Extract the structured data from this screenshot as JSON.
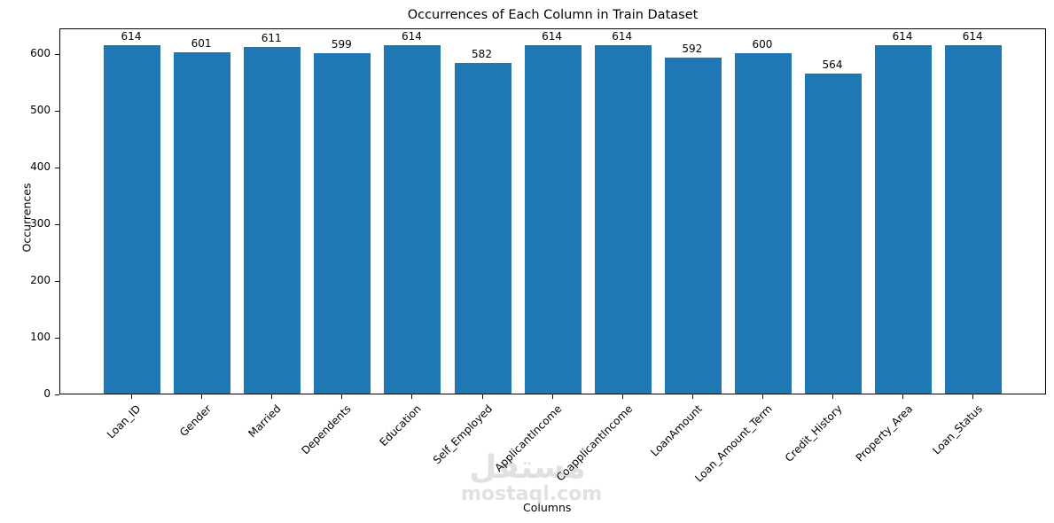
{
  "chart_data": {
    "type": "bar",
    "title": "Occurrences of Each Column in Train Dataset",
    "xlabel": "Columns",
    "ylabel": "Occurrences",
    "categories": [
      "Loan_ID",
      "Gender",
      "Married",
      "Dependents",
      "Education",
      "Self_Employed",
      "ApplicantIncome",
      "CoapplicantIncome",
      "LoanAmount",
      "Loan_Amount_Term",
      "Credit_History",
      "Property_Area",
      "Loan_Status"
    ],
    "values": [
      614,
      601,
      611,
      599,
      614,
      582,
      614,
      614,
      592,
      600,
      564,
      614,
      614
    ],
    "ylim": [
      0,
      645
    ],
    "yticks": [
      0,
      100,
      200,
      300,
      400,
      500,
      600
    ],
    "xtick_rotation": 45,
    "bar_color": "#1f77b4",
    "data_labels": true,
    "grid": false,
    "legend": null
  },
  "watermark": {
    "arabic": "مستقل",
    "latin": "mostaql.com"
  }
}
